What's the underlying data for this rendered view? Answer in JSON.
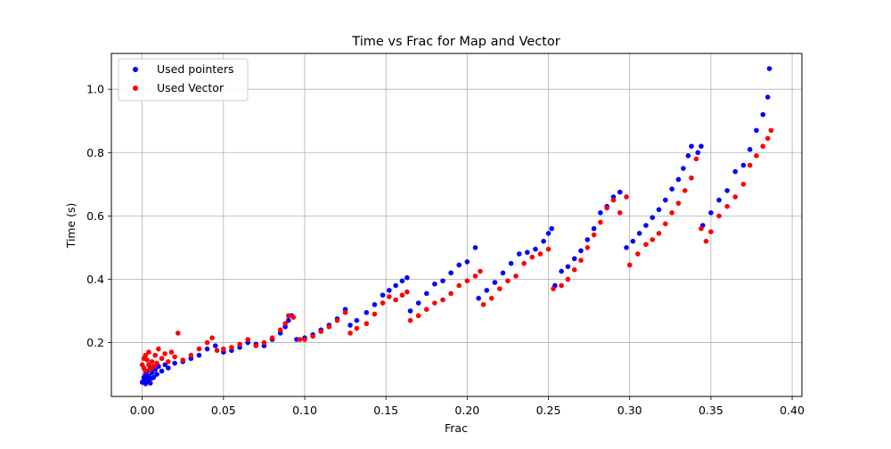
{
  "chart_data": {
    "type": "scatter",
    "title": "Time vs Frac for Map and Vector",
    "xlabel": "Frac",
    "ylabel": "Time (s)",
    "xlim": [
      -0.019,
      0.406
    ],
    "ylim": [
      0.03,
      1.113
    ],
    "xticks": [
      0.0,
      0.05,
      0.1,
      0.15,
      0.2,
      0.25,
      0.3,
      0.35,
      0.4
    ],
    "xtick_labels": [
      "0.00",
      "0.05",
      "0.10",
      "0.15",
      "0.20",
      "0.25",
      "0.30",
      "0.35",
      "0.40"
    ],
    "yticks": [
      0.2,
      0.4,
      0.6,
      0.8,
      1.0
    ],
    "ytick_labels": [
      "0.2",
      "0.4",
      "0.6",
      "0.8",
      "1.0"
    ],
    "grid": true,
    "legend_position": "upper-left",
    "series": [
      {
        "name": "Used pointers",
        "color": "#0000ff",
        "points": [
          [
            0.0,
            0.075
          ],
          [
            0.001,
            0.08
          ],
          [
            0.001,
            0.09
          ],
          [
            0.002,
            0.07
          ],
          [
            0.002,
            0.1
          ],
          [
            0.003,
            0.085
          ],
          [
            0.003,
            0.11
          ],
          [
            0.004,
            0.078
          ],
          [
            0.004,
            0.095
          ],
          [
            0.005,
            0.072
          ],
          [
            0.005,
            0.12
          ],
          [
            0.006,
            0.088
          ],
          [
            0.006,
            0.105
          ],
          [
            0.007,
            0.09
          ],
          [
            0.008,
            0.115
          ],
          [
            0.009,
            0.1
          ],
          [
            0.01,
            0.125
          ],
          [
            0.012,
            0.11
          ],
          [
            0.014,
            0.13
          ],
          [
            0.016,
            0.12
          ],
          [
            0.02,
            0.135
          ],
          [
            0.025,
            0.14
          ],
          [
            0.03,
            0.15
          ],
          [
            0.035,
            0.16
          ],
          [
            0.04,
            0.18
          ],
          [
            0.045,
            0.19
          ],
          [
            0.05,
            0.17
          ],
          [
            0.055,
            0.175
          ],
          [
            0.06,
            0.185
          ],
          [
            0.065,
            0.2
          ],
          [
            0.07,
            0.195
          ],
          [
            0.075,
            0.19
          ],
          [
            0.08,
            0.21
          ],
          [
            0.085,
            0.23
          ],
          [
            0.088,
            0.25
          ],
          [
            0.09,
            0.27
          ],
          [
            0.092,
            0.285
          ],
          [
            0.095,
            0.21
          ],
          [
            0.1,
            0.215
          ],
          [
            0.105,
            0.225
          ],
          [
            0.11,
            0.24
          ],
          [
            0.115,
            0.255
          ],
          [
            0.12,
            0.275
          ],
          [
            0.125,
            0.305
          ],
          [
            0.128,
            0.255
          ],
          [
            0.132,
            0.27
          ],
          [
            0.138,
            0.295
          ],
          [
            0.143,
            0.32
          ],
          [
            0.148,
            0.35
          ],
          [
            0.152,
            0.365
          ],
          [
            0.156,
            0.38
          ],
          [
            0.16,
            0.395
          ],
          [
            0.163,
            0.405
          ],
          [
            0.165,
            0.3
          ],
          [
            0.17,
            0.325
          ],
          [
            0.175,
            0.355
          ],
          [
            0.18,
            0.385
          ],
          [
            0.185,
            0.395
          ],
          [
            0.19,
            0.42
          ],
          [
            0.195,
            0.445
          ],
          [
            0.2,
            0.455
          ],
          [
            0.205,
            0.5
          ],
          [
            0.207,
            0.34
          ],
          [
            0.212,
            0.365
          ],
          [
            0.217,
            0.39
          ],
          [
            0.222,
            0.42
          ],
          [
            0.227,
            0.45
          ],
          [
            0.232,
            0.48
          ],
          [
            0.237,
            0.485
          ],
          [
            0.242,
            0.495
          ],
          [
            0.247,
            0.52
          ],
          [
            0.25,
            0.545
          ],
          [
            0.252,
            0.56
          ],
          [
            0.254,
            0.38
          ],
          [
            0.258,
            0.425
          ],
          [
            0.262,
            0.44
          ],
          [
            0.266,
            0.465
          ],
          [
            0.27,
            0.49
          ],
          [
            0.274,
            0.525
          ],
          [
            0.278,
            0.56
          ],
          [
            0.282,
            0.61
          ],
          [
            0.286,
            0.63
          ],
          [
            0.29,
            0.66
          ],
          [
            0.294,
            0.675
          ],
          [
            0.298,
            0.5
          ],
          [
            0.302,
            0.52
          ],
          [
            0.306,
            0.545
          ],
          [
            0.31,
            0.57
          ],
          [
            0.314,
            0.595
          ],
          [
            0.318,
            0.62
          ],
          [
            0.322,
            0.65
          ],
          [
            0.326,
            0.685
          ],
          [
            0.33,
            0.715
          ],
          [
            0.333,
            0.75
          ],
          [
            0.336,
            0.79
          ],
          [
            0.338,
            0.82
          ],
          [
            0.342,
            0.8
          ],
          [
            0.344,
            0.82
          ],
          [
            0.345,
            0.57
          ],
          [
            0.35,
            0.61
          ],
          [
            0.355,
            0.65
          ],
          [
            0.36,
            0.68
          ],
          [
            0.365,
            0.74
          ],
          [
            0.37,
            0.76
          ],
          [
            0.374,
            0.81
          ],
          [
            0.378,
            0.87
          ],
          [
            0.382,
            0.92
          ],
          [
            0.385,
            0.975
          ],
          [
            0.386,
            1.065
          ]
        ]
      },
      {
        "name": "Used Vector",
        "color": "#ff0000",
        "points": [
          [
            0.0,
            0.13
          ],
          [
            0.001,
            0.15
          ],
          [
            0.001,
            0.12
          ],
          [
            0.002,
            0.16
          ],
          [
            0.002,
            0.11
          ],
          [
            0.003,
            0.145
          ],
          [
            0.004,
            0.13
          ],
          [
            0.004,
            0.17
          ],
          [
            0.005,
            0.115
          ],
          [
            0.006,
            0.14
          ],
          [
            0.007,
            0.125
          ],
          [
            0.008,
            0.16
          ],
          [
            0.009,
            0.135
          ],
          [
            0.01,
            0.18
          ],
          [
            0.012,
            0.15
          ],
          [
            0.014,
            0.165
          ],
          [
            0.016,
            0.14
          ],
          [
            0.018,
            0.17
          ],
          [
            0.02,
            0.155
          ],
          [
            0.022,
            0.23
          ],
          [
            0.025,
            0.145
          ],
          [
            0.03,
            0.16
          ],
          [
            0.035,
            0.18
          ],
          [
            0.04,
            0.2
          ],
          [
            0.043,
            0.215
          ],
          [
            0.046,
            0.175
          ],
          [
            0.05,
            0.18
          ],
          [
            0.055,
            0.185
          ],
          [
            0.06,
            0.195
          ],
          [
            0.065,
            0.21
          ],
          [
            0.07,
            0.19
          ],
          [
            0.075,
            0.2
          ],
          [
            0.08,
            0.215
          ],
          [
            0.085,
            0.24
          ],
          [
            0.088,
            0.26
          ],
          [
            0.09,
            0.285
          ],
          [
            0.093,
            0.28
          ],
          [
            0.097,
            0.21
          ],
          [
            0.1,
            0.21
          ],
          [
            0.105,
            0.22
          ],
          [
            0.11,
            0.235
          ],
          [
            0.115,
            0.25
          ],
          [
            0.12,
            0.27
          ],
          [
            0.125,
            0.295
          ],
          [
            0.128,
            0.23
          ],
          [
            0.132,
            0.245
          ],
          [
            0.138,
            0.26
          ],
          [
            0.143,
            0.29
          ],
          [
            0.148,
            0.325
          ],
          [
            0.152,
            0.345
          ],
          [
            0.156,
            0.335
          ],
          [
            0.16,
            0.35
          ],
          [
            0.163,
            0.36
          ],
          [
            0.165,
            0.27
          ],
          [
            0.17,
            0.285
          ],
          [
            0.175,
            0.305
          ],
          [
            0.18,
            0.325
          ],
          [
            0.185,
            0.335
          ],
          [
            0.19,
            0.355
          ],
          [
            0.195,
            0.38
          ],
          [
            0.2,
            0.395
          ],
          [
            0.205,
            0.41
          ],
          [
            0.208,
            0.425
          ],
          [
            0.21,
            0.32
          ],
          [
            0.215,
            0.34
          ],
          [
            0.22,
            0.37
          ],
          [
            0.225,
            0.395
          ],
          [
            0.23,
            0.41
          ],
          [
            0.235,
            0.45
          ],
          [
            0.24,
            0.47
          ],
          [
            0.245,
            0.48
          ],
          [
            0.25,
            0.495
          ],
          [
            0.253,
            0.37
          ],
          [
            0.258,
            0.38
          ],
          [
            0.262,
            0.4
          ],
          [
            0.266,
            0.43
          ],
          [
            0.27,
            0.46
          ],
          [
            0.274,
            0.5
          ],
          [
            0.278,
            0.54
          ],
          [
            0.282,
            0.58
          ],
          [
            0.286,
            0.625
          ],
          [
            0.29,
            0.65
          ],
          [
            0.294,
            0.61
          ],
          [
            0.298,
            0.66
          ],
          [
            0.3,
            0.445
          ],
          [
            0.305,
            0.48
          ],
          [
            0.31,
            0.51
          ],
          [
            0.314,
            0.525
          ],
          [
            0.318,
            0.545
          ],
          [
            0.322,
            0.575
          ],
          [
            0.326,
            0.61
          ],
          [
            0.33,
            0.64
          ],
          [
            0.334,
            0.68
          ],
          [
            0.338,
            0.72
          ],
          [
            0.341,
            0.78
          ],
          [
            0.344,
            0.56
          ],
          [
            0.347,
            0.52
          ],
          [
            0.35,
            0.55
          ],
          [
            0.355,
            0.6
          ],
          [
            0.36,
            0.63
          ],
          [
            0.365,
            0.66
          ],
          [
            0.37,
            0.7
          ],
          [
            0.374,
            0.76
          ],
          [
            0.378,
            0.79
          ],
          [
            0.382,
            0.82
          ],
          [
            0.385,
            0.845
          ],
          [
            0.387,
            0.87
          ]
        ]
      }
    ]
  }
}
